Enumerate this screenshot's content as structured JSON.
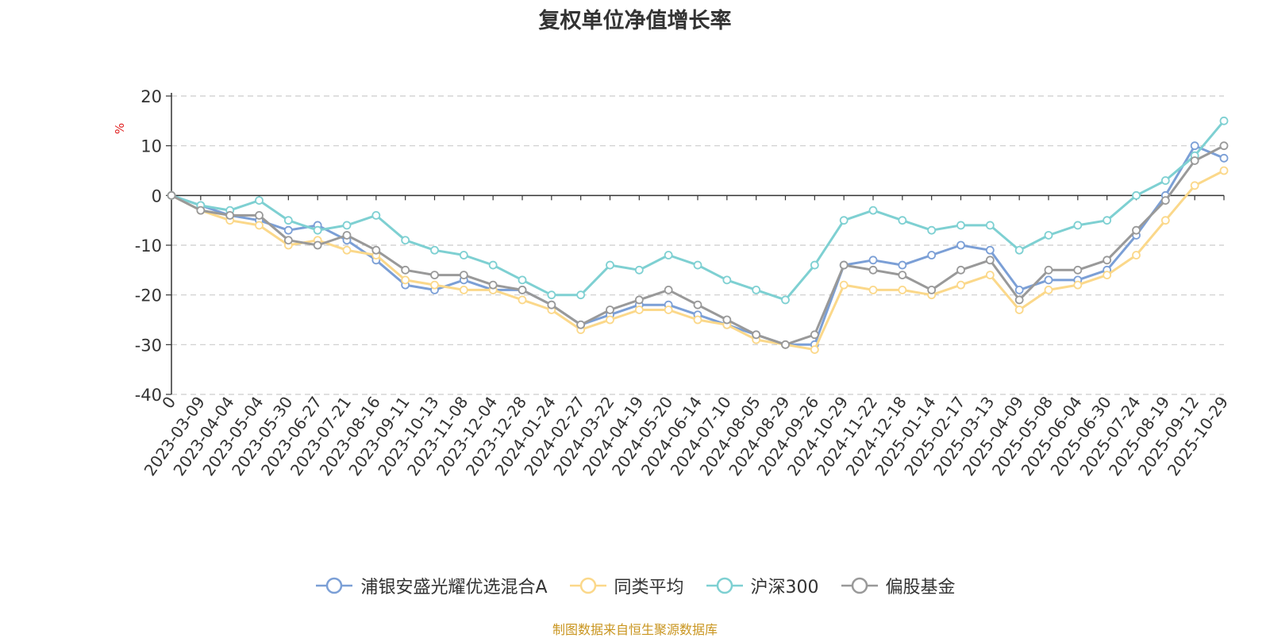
{
  "chart_data": {
    "type": "line",
    "title": "复权单位净值增长率",
    "ylabel": "%",
    "xlabel": "",
    "ylim": [
      -40,
      20
    ],
    "yticks": [
      20,
      10,
      0,
      -10,
      -20,
      -30,
      -40
    ],
    "grid": true,
    "legend_position": "bottom",
    "source": "制图数据来自恒生聚源数据库",
    "categories": [
      "0",
      "2023-03-09",
      "2023-04-04",
      "2023-05-04",
      "2023-05-30",
      "2023-06-27",
      "2023-07-21",
      "2023-08-16",
      "2023-09-11",
      "2023-10-13",
      "2023-11-08",
      "2023-12-04",
      "2023-12-28",
      "2024-01-24",
      "2024-02-27",
      "2024-03-22",
      "2024-04-19",
      "2024-05-20",
      "2024-06-14",
      "2024-07-10",
      "2024-08-05",
      "2024-08-29",
      "2024-09-26",
      "2024-10-29",
      "2024-11-22",
      "2024-12-18",
      "2025-01-14",
      "2025-02-17",
      "2025-03-13",
      "2025-04-09",
      "2025-05-08",
      "2025-06-04",
      "2025-06-30",
      "2025-07-24",
      "2025-08-19",
      "2025-09-12",
      "2025-10-29"
    ],
    "series": [
      {
        "name": "浦银安盛光耀优选混合A",
        "color": "#7b9fd6",
        "values": [
          0,
          -2,
          -4,
          -5,
          -7,
          -6,
          -9,
          -13,
          -18,
          -19,
          -17,
          -19,
          -19,
          -22,
          -26,
          -24,
          -22,
          -22,
          -24,
          -26,
          -28,
          -30,
          -30,
          -14,
          -13,
          -14,
          -12,
          -10,
          -11,
          -19,
          -17,
          -17,
          -15,
          -8,
          0,
          10,
          7.5
        ]
      },
      {
        "name": "同类平均",
        "color": "#fbd88a",
        "values": [
          0,
          -3,
          -5,
          -6,
          -10,
          -9,
          -11,
          -12,
          -17,
          -18,
          -19,
          -19,
          -21,
          -23,
          -27,
          -25,
          -23,
          -23,
          -25,
          -26,
          -29,
          -30,
          -31,
          -18,
          -19,
          -19,
          -20,
          -18,
          -16,
          -23,
          -19,
          -18,
          -16,
          -12,
          -5,
          2,
          5
        ]
      },
      {
        "name": "沪深300",
        "color": "#7ed0d2",
        "values": [
          0,
          -2,
          -3,
          -1,
          -5,
          -7,
          -6,
          -4,
          -9,
          -11,
          -12,
          -14,
          -17,
          -20,
          -20,
          -14,
          -15,
          -12,
          -14,
          -17,
          -19,
          -21,
          -14,
          -5,
          -3,
          -5,
          -7,
          -6,
          -6,
          -11,
          -8,
          -6,
          -5,
          0,
          3,
          8,
          15
        ]
      },
      {
        "name": "偏股基金",
        "color": "#999999",
        "values": [
          0,
          -3,
          -4,
          -4,
          -9,
          -10,
          -8,
          -11,
          -15,
          -16,
          -16,
          -18,
          -19,
          -22,
          -26,
          -23,
          -21,
          -19,
          -22,
          -25,
          -28,
          -30,
          -28,
          -14,
          -15,
          -16,
          -19,
          -15,
          -13,
          -21,
          -15,
          -15,
          -13,
          -7,
          -1,
          7,
          10
        ]
      }
    ]
  }
}
